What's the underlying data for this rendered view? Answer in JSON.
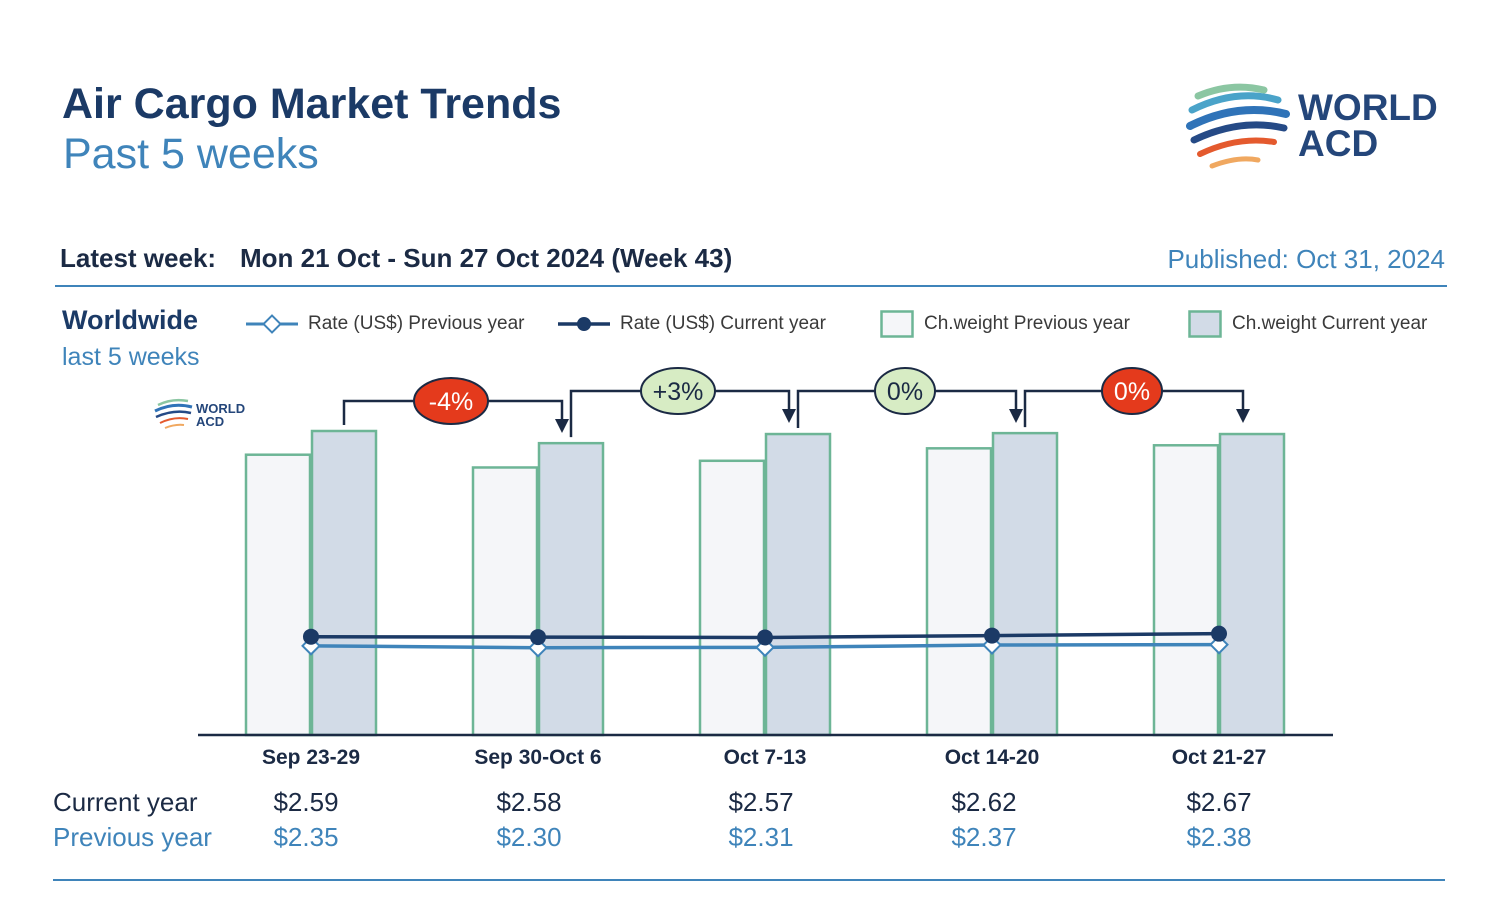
{
  "header": {
    "title": "Air Cargo Market Trends",
    "subtitle": "Past 5 weeks",
    "logo_line1": "WORLD",
    "logo_line2": "ACD"
  },
  "info_bar": {
    "latest_week_label": "Latest week:",
    "latest_week_value": "Mon 21 Oct - Sun 27 Oct 2024 (Week 43)",
    "published": "Published: Oct 31, 2024"
  },
  "region": {
    "name": "Worldwide",
    "period": "last 5 weeks"
  },
  "legend": {
    "rate_prev": "Rate (US$) Previous year",
    "rate_cur": "Rate (US$) Current year",
    "weight_prev": "Ch.weight Previous year",
    "weight_cur": "Ch.weight Current year"
  },
  "rows": {
    "current_label": "Current year",
    "previous_label": "Previous year"
  },
  "colors": {
    "navy": "#1b3a66",
    "light_blue": "#3f84ba",
    "bar_border": "#6db596",
    "bar_prev_fill": "#f5f6f9",
    "bar_cur_fill": "#d2dbe7",
    "badge_red": "#e43a1c",
    "badge_green": "#d7ecc4"
  },
  "chart_data": {
    "type": "bar",
    "categories": [
      "Sep 23-29",
      "Sep 30-Oct 6",
      "Oct 7-13",
      "Oct 14-20",
      "Oct 21-27"
    ],
    "weight_index": {
      "note_scale": "relative chargeable weight, no axis printed",
      "previous": [
        0.922,
        0.88,
        0.902,
        0.943,
        0.953
      ],
      "current": [
        1.0,
        0.96,
        0.99,
        0.993,
        0.99
      ]
    },
    "series": [
      {
        "name": "Rate (US$) Current year",
        "values": [
          2.59,
          2.58,
          2.57,
          2.62,
          2.67
        ],
        "labels": [
          "$2.59",
          "$2.58",
          "$2.57",
          "$2.62",
          "$2.67"
        ]
      },
      {
        "name": "Rate (US$) Previous year",
        "values": [
          2.35,
          2.3,
          2.31,
          2.37,
          2.38
        ],
        "labels": [
          "$2.35",
          "$2.30",
          "$2.31",
          "$2.37",
          "$2.38"
        ]
      }
    ],
    "week_changes": [
      {
        "label": "-4%",
        "style": "red"
      },
      {
        "label": "+3%",
        "style": "green"
      },
      {
        "label": "0%",
        "style": "green"
      },
      {
        "label": "0%",
        "style": "red"
      }
    ],
    "rate_axis_range": [
      0,
      8.3
    ],
    "grid": false
  }
}
